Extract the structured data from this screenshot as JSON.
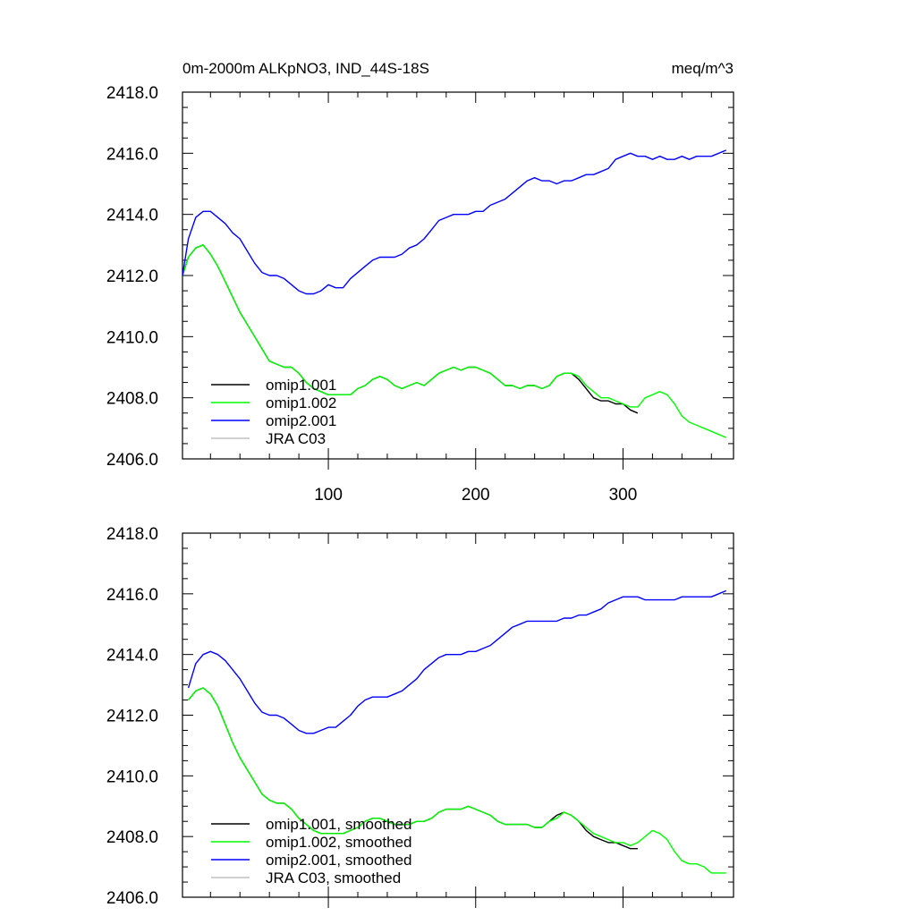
{
  "chart_data": [
    {
      "type": "line",
      "title": "0m-2000m ALKpNO3, IND_44S-18S",
      "units": "meq/m^3",
      "xlim": [
        1,
        375
      ],
      "ylim": [
        2406.0,
        2418.0
      ],
      "x_ticks": [
        100,
        200,
        300
      ],
      "x_tick_labels": [
        "100",
        "200",
        "300"
      ],
      "y_ticks": [
        2406.0,
        2408.0,
        2410.0,
        2412.0,
        2414.0,
        2416.0,
        2418.0
      ],
      "y_tick_labels": [
        "2406.0",
        "2408.0",
        "2410.0",
        "2412.0",
        "2414.0",
        "2416.0",
        "2418.0"
      ],
      "legend": [
        "omip1.001",
        "omip1.002",
        "omip2.001",
        "JRA C03"
      ],
      "legend_position": "bottom-left",
      "series": [
        {
          "name": "omip1.001",
          "color": "#000000",
          "x": [
            1,
            5,
            10,
            15,
            20,
            25,
            30,
            35,
            40,
            45,
            50,
            55,
            60,
            65,
            70,
            75,
            80,
            85,
            90,
            95,
            100,
            105,
            110,
            115,
            120,
            125,
            130,
            135,
            140,
            145,
            150,
            155,
            160,
            165,
            170,
            175,
            180,
            185,
            190,
            195,
            200,
            205,
            210,
            215,
            220,
            225,
            230,
            235,
            240,
            245,
            250,
            255,
            260,
            265,
            270,
            275,
            280,
            285,
            290,
            295,
            300,
            305,
            310
          ],
          "y": [
            2412.0,
            2412.6,
            2412.9,
            2413.0,
            2412.7,
            2412.3,
            2411.8,
            2411.3,
            2410.8,
            2410.4,
            2410.0,
            2409.6,
            2409.2,
            2409.1,
            2409.0,
            2409.0,
            2408.8,
            2408.5,
            2408.3,
            2408.2,
            2408.1,
            2408.1,
            2408.1,
            2408.1,
            2408.3,
            2408.4,
            2408.6,
            2408.7,
            2408.6,
            2408.4,
            2408.3,
            2408.4,
            2408.5,
            2408.4,
            2408.6,
            2408.8,
            2408.9,
            2409.0,
            2408.9,
            2409.0,
            2409.0,
            2408.9,
            2408.8,
            2408.6,
            2408.4,
            2408.4,
            2408.3,
            2408.4,
            2408.4,
            2408.3,
            2408.4,
            2408.7,
            2408.8,
            2408.8,
            2408.6,
            2408.3,
            2408.0,
            2407.9,
            2407.9,
            2407.8,
            2407.8,
            2407.6,
            2407.5
          ]
        },
        {
          "name": "omip1.002",
          "color": "#00ff00",
          "x": [
            1,
            5,
            10,
            15,
            20,
            25,
            30,
            35,
            40,
            45,
            50,
            55,
            60,
            65,
            70,
            75,
            80,
            85,
            90,
            95,
            100,
            105,
            110,
            115,
            120,
            125,
            130,
            135,
            140,
            145,
            150,
            155,
            160,
            165,
            170,
            175,
            180,
            185,
            190,
            195,
            200,
            205,
            210,
            215,
            220,
            225,
            230,
            235,
            240,
            245,
            250,
            255,
            260,
            265,
            270,
            275,
            280,
            285,
            290,
            295,
            300,
            305,
            310,
            315,
            320,
            325,
            330,
            335,
            340,
            345,
            350,
            355,
            360,
            365,
            370
          ],
          "y": [
            2412.0,
            2412.6,
            2412.9,
            2413.0,
            2412.7,
            2412.3,
            2411.8,
            2411.3,
            2410.8,
            2410.4,
            2410.0,
            2409.6,
            2409.2,
            2409.1,
            2409.0,
            2409.0,
            2408.8,
            2408.5,
            2408.3,
            2408.2,
            2408.1,
            2408.1,
            2408.1,
            2408.1,
            2408.3,
            2408.4,
            2408.6,
            2408.7,
            2408.6,
            2408.4,
            2408.3,
            2408.4,
            2408.5,
            2408.4,
            2408.6,
            2408.8,
            2408.9,
            2409.0,
            2408.9,
            2409.0,
            2409.0,
            2408.9,
            2408.8,
            2408.6,
            2408.4,
            2408.4,
            2408.3,
            2408.4,
            2408.4,
            2408.3,
            2408.4,
            2408.7,
            2408.8,
            2408.8,
            2408.7,
            2408.4,
            2408.2,
            2408.0,
            2408.0,
            2407.9,
            2407.8,
            2407.7,
            2407.7,
            2408.0,
            2408.1,
            2408.2,
            2408.1,
            2407.8,
            2407.4,
            2407.2,
            2407.1,
            2407.0,
            2406.9,
            2406.8,
            2406.7
          ]
        },
        {
          "name": "omip2.001",
          "color": "#0000ff",
          "x": [
            1,
            5,
            10,
            15,
            20,
            25,
            30,
            35,
            40,
            45,
            50,
            55,
            60,
            65,
            70,
            75,
            80,
            85,
            90,
            95,
            100,
            105,
            110,
            115,
            120,
            125,
            130,
            135,
            140,
            145,
            150,
            155,
            160,
            165,
            170,
            175,
            180,
            185,
            190,
            195,
            200,
            205,
            210,
            215,
            220,
            225,
            230,
            235,
            240,
            245,
            250,
            255,
            260,
            265,
            270,
            275,
            280,
            285,
            290,
            295,
            300,
            305,
            310,
            315,
            320,
            325,
            330,
            335,
            340,
            345,
            350,
            355,
            360,
            365,
            370
          ],
          "y": [
            2412.0,
            2413.2,
            2413.9,
            2414.1,
            2414.1,
            2413.9,
            2413.7,
            2413.4,
            2413.2,
            2412.8,
            2412.4,
            2412.1,
            2412.0,
            2412.0,
            2411.9,
            2411.7,
            2411.5,
            2411.4,
            2411.4,
            2411.5,
            2411.7,
            2411.6,
            2411.6,
            2411.9,
            2412.1,
            2412.3,
            2412.5,
            2412.6,
            2412.6,
            2412.6,
            2412.7,
            2412.9,
            2413.0,
            2413.2,
            2413.5,
            2413.8,
            2413.9,
            2414.0,
            2414.0,
            2414.0,
            2414.1,
            2414.1,
            2414.3,
            2414.4,
            2414.5,
            2414.7,
            2414.9,
            2415.1,
            2415.2,
            2415.1,
            2415.1,
            2415.0,
            2415.1,
            2415.1,
            2415.2,
            2415.3,
            2415.3,
            2415.4,
            2415.5,
            2415.8,
            2415.9,
            2416.0,
            2415.9,
            2415.9,
            2415.8,
            2415.9,
            2415.8,
            2415.8,
            2415.9,
            2415.8,
            2415.9,
            2415.9,
            2415.9,
            2416.0,
            2416.1
          ]
        },
        {
          "name": "JRA C03",
          "color": "#c0c0c0",
          "x": [],
          "y": []
        }
      ]
    },
    {
      "type": "line",
      "title": "",
      "units": "",
      "xlim": [
        1,
        375
      ],
      "ylim": [
        2406.0,
        2418.0
      ],
      "x_ticks": [
        100,
        200,
        300
      ],
      "x_tick_labels": [],
      "y_ticks": [
        2406.0,
        2408.0,
        2410.0,
        2412.0,
        2414.0,
        2416.0,
        2418.0
      ],
      "y_tick_labels": [
        "2406.0",
        "2408.0",
        "2410.0",
        "2412.0",
        "2414.0",
        "2416.0",
        "2418.0"
      ],
      "legend": [
        "omip1.001, smoothed",
        "omip1.002, smoothed",
        "omip2.001, smoothed",
        "JRA C03, smoothed"
      ],
      "legend_position": "bottom-left",
      "series": [
        {
          "name": "omip1.001, smoothed",
          "color": "#000000",
          "x": [
            5,
            10,
            15,
            20,
            25,
            30,
            35,
            40,
            45,
            50,
            55,
            60,
            65,
            70,
            75,
            80,
            85,
            90,
            95,
            100,
            105,
            110,
            115,
            120,
            125,
            130,
            135,
            140,
            145,
            150,
            155,
            160,
            165,
            170,
            175,
            180,
            185,
            190,
            195,
            200,
            205,
            210,
            215,
            220,
            225,
            230,
            235,
            240,
            245,
            250,
            255,
            260,
            265,
            270,
            275,
            280,
            285,
            290,
            295,
            300,
            305,
            310
          ],
          "y": [
            2412.5,
            2412.8,
            2412.9,
            2412.7,
            2412.3,
            2411.7,
            2411.1,
            2410.6,
            2410.2,
            2409.8,
            2409.4,
            2409.2,
            2409.1,
            2409.1,
            2408.9,
            2408.6,
            2408.4,
            2408.2,
            2408.1,
            2408.1,
            2408.1,
            2408.1,
            2408.2,
            2408.3,
            2408.5,
            2408.6,
            2408.6,
            2408.5,
            2408.4,
            2408.4,
            2408.4,
            2408.5,
            2408.5,
            2408.6,
            2408.8,
            2408.9,
            2408.9,
            2408.9,
            2409.0,
            2408.9,
            2408.8,
            2408.7,
            2408.5,
            2408.4,
            2408.4,
            2408.4,
            2408.4,
            2408.3,
            2408.3,
            2408.5,
            2408.7,
            2408.8,
            2408.7,
            2408.5,
            2408.2,
            2408.0,
            2407.9,
            2407.8,
            2407.8,
            2407.7,
            2407.6,
            2407.6
          ]
        },
        {
          "name": "omip1.002, smoothed",
          "color": "#00ff00",
          "x": [
            5,
            10,
            15,
            20,
            25,
            30,
            35,
            40,
            45,
            50,
            55,
            60,
            65,
            70,
            75,
            80,
            85,
            90,
            95,
            100,
            105,
            110,
            115,
            120,
            125,
            130,
            135,
            140,
            145,
            150,
            155,
            160,
            165,
            170,
            175,
            180,
            185,
            190,
            195,
            200,
            205,
            210,
            215,
            220,
            225,
            230,
            235,
            240,
            245,
            250,
            255,
            260,
            265,
            270,
            275,
            280,
            285,
            290,
            295,
            300,
            305,
            310,
            315,
            320,
            325,
            330,
            335,
            340,
            345,
            350,
            355,
            360,
            365,
            370
          ],
          "y": [
            2412.5,
            2412.8,
            2412.9,
            2412.7,
            2412.3,
            2411.7,
            2411.1,
            2410.6,
            2410.2,
            2409.8,
            2409.4,
            2409.2,
            2409.1,
            2409.1,
            2408.9,
            2408.6,
            2408.4,
            2408.2,
            2408.1,
            2408.1,
            2408.1,
            2408.1,
            2408.2,
            2408.3,
            2408.5,
            2408.6,
            2408.6,
            2408.5,
            2408.4,
            2408.4,
            2408.4,
            2408.5,
            2408.5,
            2408.6,
            2408.8,
            2408.9,
            2408.9,
            2408.9,
            2409.0,
            2408.9,
            2408.8,
            2408.7,
            2408.5,
            2408.4,
            2408.4,
            2408.4,
            2408.4,
            2408.3,
            2408.3,
            2408.5,
            2408.6,
            2408.8,
            2408.7,
            2408.5,
            2408.3,
            2408.1,
            2408.0,
            2407.9,
            2407.8,
            2407.8,
            2407.7,
            2407.8,
            2408.0,
            2408.2,
            2408.1,
            2407.9,
            2407.5,
            2407.2,
            2407.1,
            2407.1,
            2407.0,
            2406.8,
            2406.8,
            2406.8
          ]
        },
        {
          "name": "omip2.001, smoothed",
          "color": "#0000ff",
          "x": [
            5,
            10,
            15,
            20,
            25,
            30,
            35,
            40,
            45,
            50,
            55,
            60,
            65,
            70,
            75,
            80,
            85,
            90,
            95,
            100,
            105,
            110,
            115,
            120,
            125,
            130,
            135,
            140,
            145,
            150,
            155,
            160,
            165,
            170,
            175,
            180,
            185,
            190,
            195,
            200,
            205,
            210,
            215,
            220,
            225,
            230,
            235,
            240,
            245,
            250,
            255,
            260,
            265,
            270,
            275,
            280,
            285,
            290,
            295,
            300,
            305,
            310,
            315,
            320,
            325,
            330,
            335,
            340,
            345,
            350,
            355,
            360,
            365,
            370
          ],
          "y": [
            2412.9,
            2413.7,
            2414.0,
            2414.1,
            2414.0,
            2413.8,
            2413.5,
            2413.2,
            2412.8,
            2412.4,
            2412.1,
            2412.0,
            2412.0,
            2411.9,
            2411.7,
            2411.5,
            2411.4,
            2411.4,
            2411.5,
            2411.6,
            2411.6,
            2411.8,
            2412.0,
            2412.3,
            2412.5,
            2412.6,
            2412.6,
            2412.6,
            2412.7,
            2412.8,
            2413.0,
            2413.2,
            2413.5,
            2413.7,
            2413.9,
            2414.0,
            2414.0,
            2414.0,
            2414.1,
            2414.1,
            2414.2,
            2414.3,
            2414.5,
            2414.7,
            2414.9,
            2415.0,
            2415.1,
            2415.1,
            2415.1,
            2415.1,
            2415.1,
            2415.2,
            2415.2,
            2415.3,
            2415.3,
            2415.4,
            2415.5,
            2415.7,
            2415.8,
            2415.9,
            2415.9,
            2415.9,
            2415.8,
            2415.8,
            2415.8,
            2415.8,
            2415.8,
            2415.9,
            2415.9,
            2415.9,
            2415.9,
            2415.9,
            2416.0,
            2416.1
          ]
        },
        {
          "name": "JRA C03, smoothed",
          "color": "#c0c0c0",
          "x": [],
          "y": []
        }
      ]
    }
  ]
}
